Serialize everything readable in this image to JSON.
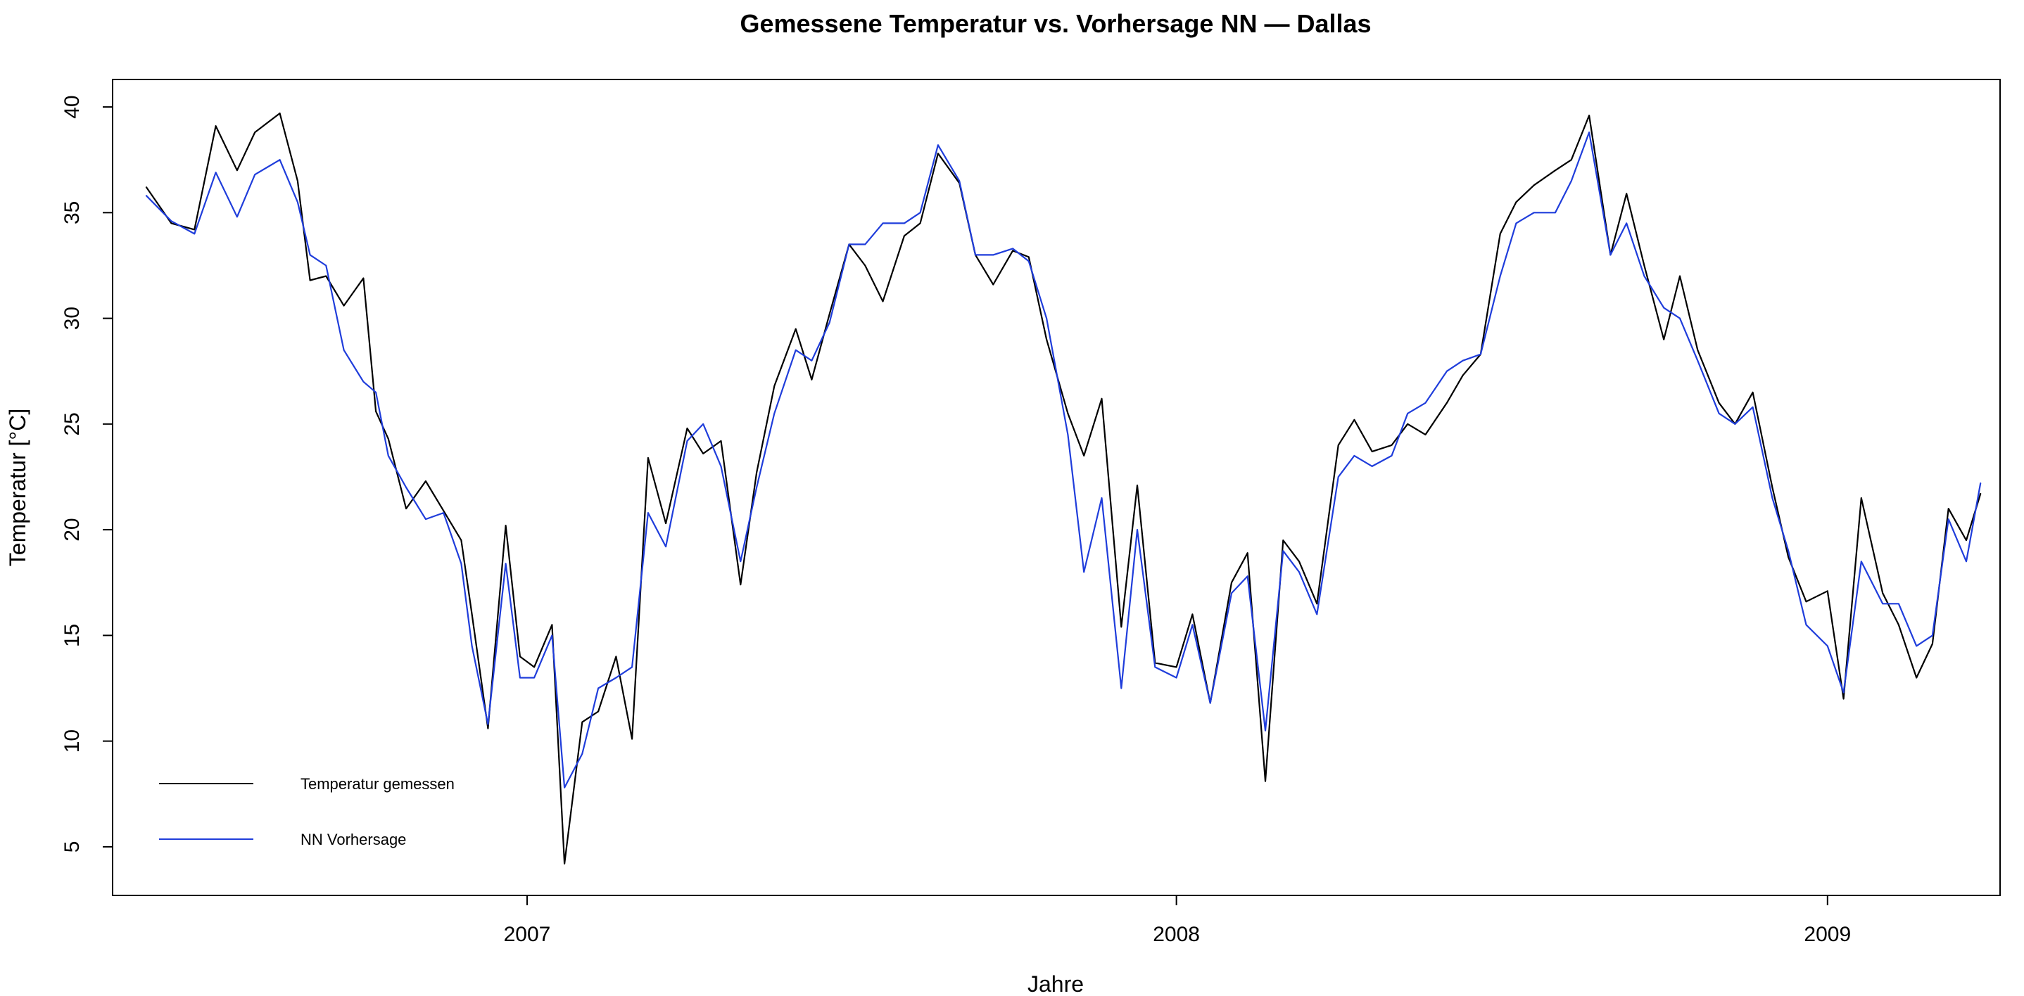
{
  "chart_data": {
    "type": "line",
    "title": "Gemessene Temperatur vs. Vorhersage NN — Dallas",
    "xlabel": "Jahre",
    "ylabel": "Temperatur [°C]",
    "xlim": [
      "2006-05-13",
      "2009-04-08"
    ],
    "ylim": [
      2.7,
      41.3
    ],
    "x_ticks": [
      {
        "date": "2007-01-01",
        "label": "2007"
      },
      {
        "date": "2008-01-01",
        "label": "2008"
      },
      {
        "date": "2009-01-01",
        "label": "2009"
      }
    ],
    "y_ticks": [
      5,
      10,
      15,
      20,
      25,
      30,
      35,
      40
    ],
    "grid": false,
    "legend": {
      "position": "bottom-left"
    },
    "series": [
      {
        "name": "Temperatur gemessen",
        "color": "#000000",
        "x": [
          "2006-06-01",
          "2006-06-15",
          "2006-06-28",
          "2006-07-10",
          "2006-07-22",
          "2006-08-01",
          "2006-08-15",
          "2006-08-25",
          "2006-09-01",
          "2006-09-10",
          "2006-09-20",
          "2006-10-01",
          "2006-10-08",
          "2006-10-15",
          "2006-10-25",
          "2006-11-05",
          "2006-11-15",
          "2006-11-25",
          "2006-12-01",
          "2006-12-10",
          "2006-12-20",
          "2006-12-28",
          "2007-01-05",
          "2007-01-15",
          "2007-01-22",
          "2007-02-01",
          "2007-02-10",
          "2007-02-20",
          "2007-03-01",
          "2007-03-10",
          "2007-03-20",
          "2007-04-01",
          "2007-04-10",
          "2007-04-20",
          "2007-05-01",
          "2007-05-10",
          "2007-05-20",
          "2007-06-01",
          "2007-06-10",
          "2007-06-20",
          "2007-07-01",
          "2007-07-10",
          "2007-07-20",
          "2007-08-01",
          "2007-08-10",
          "2007-08-20",
          "2007-09-01",
          "2007-09-10",
          "2007-09-20",
          "2007-10-01",
          "2007-10-10",
          "2007-10-20",
          "2007-11-01",
          "2007-11-10",
          "2007-11-20",
          "2007-12-01",
          "2007-12-10",
          "2007-12-20",
          "2008-01-01",
          "2008-01-10",
          "2008-01-20",
          "2008-02-01",
          "2008-02-10",
          "2008-02-20",
          "2008-03-01",
          "2008-03-10",
          "2008-03-20",
          "2008-04-01",
          "2008-04-10",
          "2008-04-20",
          "2008-05-01",
          "2008-05-10",
          "2008-05-20",
          "2008-06-01",
          "2008-06-10",
          "2008-06-20",
          "2008-07-01",
          "2008-07-10",
          "2008-07-20",
          "2008-08-01",
          "2008-08-10",
          "2008-08-20",
          "2008-09-01",
          "2008-09-10",
          "2008-09-20",
          "2008-10-01",
          "2008-10-10",
          "2008-10-20",
          "2008-11-01",
          "2008-11-10",
          "2008-11-20",
          "2008-12-01",
          "2008-12-10",
          "2008-12-20",
          "2009-01-01",
          "2009-01-10",
          "2009-01-20",
          "2009-02-01",
          "2009-02-10",
          "2009-02-20",
          "2009-03-01",
          "2009-03-10",
          "2009-03-20",
          "2009-03-28"
        ],
        "values": [
          36.2,
          34.5,
          34.2,
          39.1,
          37.0,
          38.8,
          39.7,
          36.5,
          31.8,
          32.0,
          30.6,
          31.9,
          25.6,
          24.3,
          21.0,
          22.3,
          20.9,
          19.5,
          16.0,
          10.6,
          20.2,
          14.0,
          13.5,
          15.5,
          4.2,
          10.9,
          11.4,
          14.0,
          10.1,
          23.4,
          20.3,
          24.8,
          23.6,
          24.2,
          17.4,
          22.7,
          26.8,
          29.5,
          27.1,
          30.2,
          33.5,
          32.5,
          30.8,
          33.9,
          34.5,
          37.8,
          36.4,
          33.0,
          31.6,
          33.2,
          32.9,
          29.0,
          25.5,
          23.5,
          26.2,
          15.4,
          22.1,
          13.7,
          13.5,
          16.0,
          11.8,
          17.5,
          18.9,
          8.1,
          19.5,
          18.5,
          16.5,
          24.0,
          25.2,
          23.7,
          24.0,
          25.0,
          24.5,
          26.0,
          27.3,
          28.3,
          34.0,
          35.5,
          36.3,
          37.0,
          37.5,
          39.6,
          33.0,
          35.9,
          32.5,
          29.0,
          32.0,
          28.5,
          26.0,
          25.0,
          26.5,
          22.0,
          18.7,
          16.6,
          17.1,
          12.0,
          21.5,
          17.0,
          15.5,
          13.0,
          14.6,
          21.0,
          19.5,
          21.7
        ]
      },
      {
        "name": "NN Vorhersage",
        "color": "#1f3ddb",
        "x": [
          "2006-06-01",
          "2006-06-15",
          "2006-06-28",
          "2006-07-10",
          "2006-07-22",
          "2006-08-01",
          "2006-08-15",
          "2006-08-25",
          "2006-09-01",
          "2006-09-10",
          "2006-09-20",
          "2006-10-01",
          "2006-10-08",
          "2006-10-15",
          "2006-10-25",
          "2006-11-05",
          "2006-11-15",
          "2006-11-25",
          "2006-12-01",
          "2006-12-10",
          "2006-12-20",
          "2006-12-28",
          "2007-01-05",
          "2007-01-15",
          "2007-01-22",
          "2007-02-01",
          "2007-02-10",
          "2007-02-20",
          "2007-03-01",
          "2007-03-10",
          "2007-03-20",
          "2007-04-01",
          "2007-04-10",
          "2007-04-20",
          "2007-05-01",
          "2007-05-10",
          "2007-05-20",
          "2007-06-01",
          "2007-06-10",
          "2007-06-20",
          "2007-07-01",
          "2007-07-10",
          "2007-07-20",
          "2007-08-01",
          "2007-08-10",
          "2007-08-20",
          "2007-09-01",
          "2007-09-10",
          "2007-09-20",
          "2007-10-01",
          "2007-10-10",
          "2007-10-20",
          "2007-11-01",
          "2007-11-10",
          "2007-11-20",
          "2007-12-01",
          "2007-12-10",
          "2007-12-20",
          "2008-01-01",
          "2008-01-10",
          "2008-01-20",
          "2008-02-01",
          "2008-02-10",
          "2008-02-20",
          "2008-03-01",
          "2008-03-10",
          "2008-03-20",
          "2008-04-01",
          "2008-04-10",
          "2008-04-20",
          "2008-05-01",
          "2008-05-10",
          "2008-05-20",
          "2008-06-01",
          "2008-06-10",
          "2008-06-20",
          "2008-07-01",
          "2008-07-10",
          "2008-07-20",
          "2008-08-01",
          "2008-08-10",
          "2008-08-20",
          "2008-09-01",
          "2008-09-10",
          "2008-09-20",
          "2008-10-01",
          "2008-10-10",
          "2008-10-20",
          "2008-11-01",
          "2008-11-10",
          "2008-11-20",
          "2008-12-01",
          "2008-12-10",
          "2008-12-20",
          "2009-01-01",
          "2009-01-10",
          "2009-01-20",
          "2009-02-01",
          "2009-02-10",
          "2009-02-20",
          "2009-03-01",
          "2009-03-10",
          "2009-03-20",
          "2009-03-28"
        ],
        "values": [
          35.8,
          34.6,
          34.0,
          36.9,
          34.8,
          36.8,
          37.5,
          35.5,
          33.0,
          32.5,
          28.5,
          27.0,
          26.5,
          23.5,
          22.0,
          20.5,
          20.8,
          18.4,
          14.5,
          10.8,
          18.4,
          13.0,
          13.0,
          15.0,
          7.8,
          9.4,
          12.5,
          13.0,
          13.5,
          20.8,
          19.2,
          24.2,
          25.0,
          23.0,
          18.5,
          22.0,
          25.5,
          28.5,
          28.0,
          29.8,
          33.5,
          33.5,
          34.5,
          34.5,
          35.0,
          38.2,
          36.5,
          33.0,
          33.0,
          33.3,
          32.7,
          30.0,
          24.5,
          18.0,
          21.5,
          12.5,
          20.0,
          13.5,
          13.0,
          15.5,
          11.8,
          17.0,
          17.8,
          10.5,
          19.0,
          18.0,
          16.0,
          22.5,
          23.5,
          23.0,
          23.5,
          25.5,
          26.0,
          27.5,
          28.0,
          28.3,
          32.0,
          34.5,
          35.0,
          35.0,
          36.5,
          38.8,
          33.0,
          34.5,
          32.0,
          30.5,
          30.0,
          28.0,
          25.5,
          25.0,
          25.8,
          21.5,
          19.0,
          15.5,
          14.5,
          12.3,
          18.5,
          16.5,
          16.5,
          14.5,
          15.0,
          20.5,
          18.5,
          22.2
        ]
      }
    ]
  }
}
